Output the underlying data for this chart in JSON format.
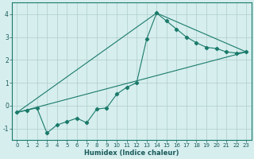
{
  "xlabel": "Humidex (Indice chaleur)",
  "bg_color": "#d6eeee",
  "grid_color": "#b0cccc",
  "line_color": "#1a7a6a",
  "line1_x": [
    0,
    1,
    2,
    3,
    4,
    5,
    6,
    7,
    8,
    9,
    10,
    11,
    12,
    13,
    14,
    15,
    16,
    17,
    18,
    19,
    20,
    21,
    22,
    23
  ],
  "line1_y": [
    -0.3,
    -0.2,
    -0.1,
    -1.2,
    -0.85,
    -0.7,
    -0.55,
    -0.75,
    -0.15,
    -0.1,
    0.5,
    0.8,
    1.0,
    2.9,
    4.05,
    3.7,
    3.35,
    3.0,
    2.75,
    2.55,
    2.5,
    2.35,
    2.3,
    2.35
  ],
  "line2_x": [
    0,
    23
  ],
  "line2_y": [
    -0.3,
    2.35
  ],
  "line3_x": [
    0,
    14,
    23
  ],
  "line3_y": [
    -0.3,
    4.05,
    2.35
  ],
  "xlim": [
    -0.5,
    23.5
  ],
  "ylim": [
    -1.5,
    4.5
  ],
  "yticks": [
    -1,
    0,
    1,
    2,
    3,
    4
  ],
  "xticks": [
    0,
    1,
    2,
    3,
    4,
    5,
    6,
    7,
    8,
    9,
    10,
    11,
    12,
    13,
    14,
    15,
    16,
    17,
    18,
    19,
    20,
    21,
    22,
    23
  ],
  "tick_color": "#1a5a5a",
  "xlabel_fontsize": 6.0,
  "tick_fontsize": 5.0,
  "marker_size": 2.2,
  "linewidth": 0.8
}
